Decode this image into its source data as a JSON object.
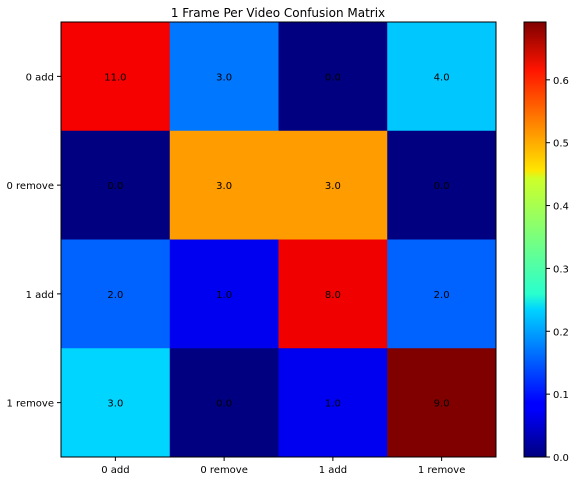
{
  "chart_data": {
    "type": "heatmap",
    "title": "1 Frame Per Video Confusion Matrix",
    "rows": [
      "0 add",
      "0 remove",
      "1 add",
      "1 remove"
    ],
    "cols": [
      "0 add",
      "0 remove",
      "1 add",
      "1 remove"
    ],
    "values": [
      [
        11.0,
        3.0,
        0.0,
        4.0
      ],
      [
        0.0,
        3.0,
        3.0,
        0.0
      ],
      [
        2.0,
        1.0,
        8.0,
        2.0
      ],
      [
        3.0,
        0.0,
        1.0,
        9.0
      ]
    ],
    "value_labels": [
      [
        "11.0",
        "3.0",
        "0.0",
        "4.0"
      ],
      [
        "0.0",
        "3.0",
        "3.0",
        "0.0"
      ],
      [
        "2.0",
        "1.0",
        "8.0",
        "2.0"
      ],
      [
        "3.0",
        "0.0",
        "1.0",
        "9.0"
      ]
    ],
    "color_values": [
      [
        0.611,
        0.167,
        0.0,
        0.222
      ],
      [
        0.0,
        0.5,
        0.5,
        0.0
      ],
      [
        0.154,
        0.077,
        0.615,
        0.154
      ],
      [
        0.231,
        0.0,
        0.077,
        0.692
      ]
    ],
    "colormap": "jet",
    "colorbar": {
      "range": [
        0.0,
        0.692
      ],
      "ticks": [
        0.0,
        0.1,
        0.2,
        0.3,
        0.4,
        0.5,
        0.6
      ],
      "tick_labels": [
        "0.0",
        "0.1",
        "0.2",
        "0.3",
        "0.4",
        "0.5",
        "0.6"
      ]
    },
    "grid": false
  }
}
